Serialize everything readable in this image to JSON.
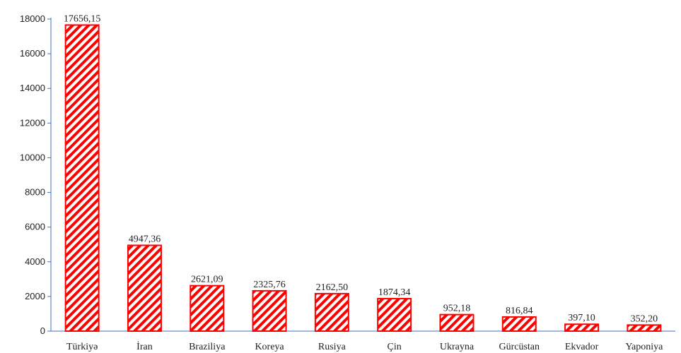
{
  "chart_data": {
    "type": "bar",
    "categories": [
      "Türkiyə",
      "İran",
      "Braziliya",
      "Koreya",
      "Rusiya",
      "Çin",
      "Ukrayna",
      "Gürcüstan",
      "Ekvador",
      "Yaponiya"
    ],
    "values": [
      17656.15,
      4947.36,
      2621.09,
      2325.76,
      2162.5,
      1874.34,
      952.18,
      816.84,
      397.1,
      352.2
    ],
    "data_labels": [
      "17656,15",
      "4947,36",
      "2621,09",
      "2325,76",
      "2162,50",
      "1874,34",
      "952,18",
      "816,84",
      "397,10",
      "352,20"
    ],
    "y_ticks": [
      "0",
      "2000",
      "4000",
      "6000",
      "8000",
      "10000",
      "12000",
      "14000",
      "16000",
      "18000"
    ],
    "ylim": [
      0,
      18000
    ],
    "grid": false,
    "legend": "none",
    "bar_color": "#ff0000",
    "axis_color": "#4472c4"
  }
}
